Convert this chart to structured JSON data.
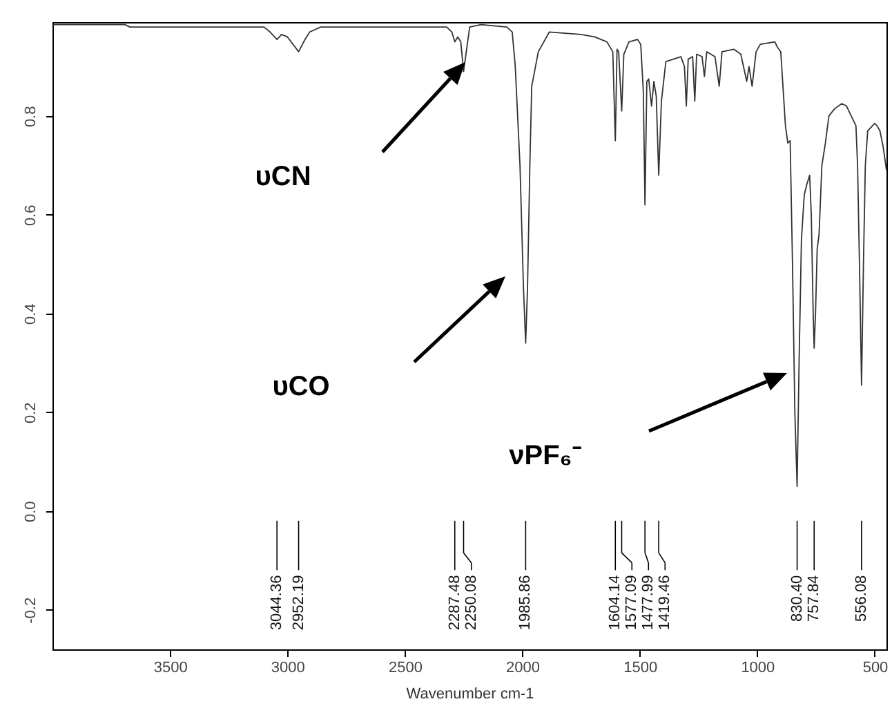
{
  "chart_data": {
    "type": "line",
    "xlabel": "Wavenumber cm-1",
    "xlim": [
      4000,
      450
    ],
    "ylim": [
      -0.28,
      0.99
    ],
    "xticks": [
      3500,
      3000,
      2500,
      2000,
      1500,
      1000,
      500
    ],
    "yticks": [
      -0.2,
      {
        "value": 0,
        "label": "0.0"
      },
      0.2,
      0.4,
      0.6,
      0.8
    ],
    "x": [
      3996,
      3800,
      3692,
      3670,
      3400,
      3200,
      3100,
      3074,
      3044.36,
      3025,
      3000,
      2952.19,
      2925,
      2905,
      2858,
      2600,
      2400,
      2322,
      2300,
      2287.48,
      2275,
      2262,
      2250.08,
      2240,
      2224,
      2176,
      2066,
      2043,
      2030,
      2010,
      1995,
      1985.86,
      1978,
      1968,
      1960,
      1932,
      1885,
      1750,
      1692,
      1640,
      1615,
      1604.14,
      1597,
      1590,
      1577.09,
      1568,
      1546,
      1510,
      1496,
      1485,
      1477.99,
      1470,
      1462,
      1450,
      1440,
      1430,
      1419.46,
      1408,
      1389,
      1325,
      1310,
      1302,
      1294,
      1275,
      1266,
      1258,
      1235,
      1225,
      1215,
      1180,
      1162,
      1150,
      1100,
      1070,
      1045,
      1035,
      1022,
      1005,
      987,
      925,
      915,
      900,
      880,
      870,
      860,
      850,
      840,
      830.4,
      822,
      812,
      800,
      790,
      777,
      770,
      762,
      757.84,
      752,
      745,
      737,
      725,
      710,
      695,
      670,
      640,
      620,
      600,
      580,
      573,
      565,
      556.08,
      548,
      540,
      530,
      500,
      490,
      478,
      465,
      450
    ],
    "series": [
      {
        "color": "#333333",
        "values": [
          0.985,
          0.985,
          0.985,
          0.98,
          0.98,
          0.98,
          0.98,
          0.97,
          0.955,
          0.965,
          0.96,
          0.93,
          0.955,
          0.97,
          0.98,
          0.98,
          0.98,
          0.98,
          0.97,
          0.95,
          0.96,
          0.95,
          0.89,
          0.925,
          0.98,
          0.985,
          0.98,
          0.97,
          0.9,
          0.7,
          0.45,
          0.34,
          0.45,
          0.7,
          0.86,
          0.93,
          0.97,
          0.965,
          0.96,
          0.95,
          0.93,
          0.75,
          0.935,
          0.93,
          0.81,
          0.925,
          0.95,
          0.955,
          0.945,
          0.85,
          0.62,
          0.87,
          0.875,
          0.82,
          0.87,
          0.84,
          0.68,
          0.83,
          0.91,
          0.92,
          0.9,
          0.82,
          0.915,
          0.92,
          0.83,
          0.925,
          0.92,
          0.88,
          0.93,
          0.92,
          0.86,
          0.93,
          0.935,
          0.925,
          0.87,
          0.9,
          0.86,
          0.93,
          0.945,
          0.95,
          0.94,
          0.93,
          0.78,
          0.745,
          0.75,
          0.5,
          0.2,
          0.05,
          0.3,
          0.55,
          0.64,
          0.66,
          0.68,
          0.6,
          0.4,
          0.33,
          0.4,
          0.53,
          0.56,
          0.7,
          0.745,
          0.8,
          0.815,
          0.825,
          0.82,
          0.8,
          0.78,
          0.7,
          0.5,
          0.255,
          0.5,
          0.7,
          0.77,
          0.785,
          0.78,
          0.77,
          0.74,
          0.69
        ]
      }
    ],
    "annotations": [
      "υCN",
      "υCO",
      "νPF₆⁻"
    ],
    "ref_lines": [
      {
        "axis": "x",
        "value": 3044.36,
        "label": "3044.36"
      },
      {
        "axis": "x",
        "value": 2952.19,
        "label": "2952.19"
      },
      {
        "axis": "x",
        "value": 2287.48,
        "label": "2287.48"
      },
      {
        "axis": "x",
        "value": 2250.08,
        "label": "2250.08"
      },
      {
        "axis": "x",
        "value": 1985.86,
        "label": "1985.86"
      },
      {
        "axis": "x",
        "value": 1604.14,
        "label": "1604.14"
      },
      {
        "axis": "x",
        "value": 1577.09,
        "label": "1577.09"
      },
      {
        "axis": "x",
        "value": 1477.99,
        "label": "1477.99"
      },
      {
        "axis": "x",
        "value": 1419.46,
        "label": "1419.46"
      },
      {
        "axis": "x",
        "value": 830.4,
        "label": "830.40"
      },
      {
        "axis": "x",
        "value": 757.84,
        "label": "757.84"
      },
      {
        "axis": "x",
        "value": 556.08,
        "label": "556.08"
      }
    ]
  }
}
